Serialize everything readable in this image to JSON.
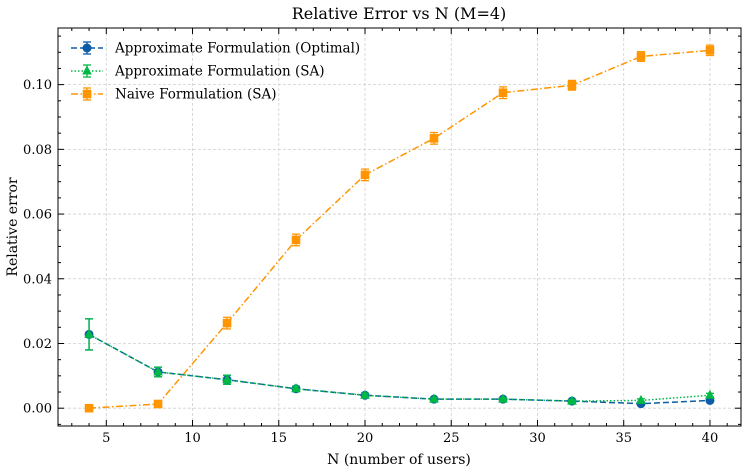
{
  "chart_data": {
    "type": "line",
    "title": "Relative Error vs N (M=4)",
    "xlabel": "N (number of users)",
    "ylabel": "Relative error",
    "xlim": [
      2.2,
      41.8
    ],
    "ylim": [
      -0.0055,
      0.1175
    ],
    "xticks": [
      5,
      10,
      15,
      20,
      25,
      30,
      35,
      40
    ],
    "xtick_labels": [
      "5",
      "10",
      "15",
      "20",
      "25",
      "30",
      "35",
      "40"
    ],
    "yticks": [
      0.0,
      0.02,
      0.04,
      0.06,
      0.08,
      0.1
    ],
    "ytick_labels": [
      "0.00",
      "0.02",
      "0.04",
      "0.06",
      "0.08",
      "0.10"
    ],
    "grid": true,
    "legend_position": "top-left",
    "x": [
      4,
      8,
      12,
      16,
      20,
      24,
      28,
      32,
      36,
      40
    ],
    "series": [
      {
        "name": "Approximate Formulation (Optimal)",
        "color": "#0c5da5",
        "marker": "circle",
        "linestyle": "dashed",
        "values": [
          0.0228,
          0.0112,
          0.0088,
          0.006,
          0.004,
          0.0028,
          0.0028,
          0.0022,
          0.0014,
          0.0024
        ],
        "errors": [
          0.0048,
          0.0015,
          0.0014,
          0.0008,
          0.0006,
          0.0004,
          0.0004,
          0.0004,
          0.0004,
          0.0005
        ]
      },
      {
        "name": "Approximate Formulation (SA)",
        "color": "#00b945",
        "marker": "triangle",
        "linestyle": "dotted",
        "values": [
          0.0228,
          0.0112,
          0.0088,
          0.006,
          0.004,
          0.0028,
          0.0028,
          0.0022,
          0.0024,
          0.004
        ],
        "errors": [
          0.0048,
          0.0015,
          0.0014,
          0.0008,
          0.0006,
          0.0004,
          0.0004,
          0.0004,
          0.0005,
          0.0006
        ]
      },
      {
        "name": "Naive Formulation (SA)",
        "color": "#ff9500",
        "marker": "square",
        "linestyle": "dashdot",
        "values": [
          0.0,
          0.0013,
          0.0263,
          0.052,
          0.0721,
          0.0834,
          0.0975,
          0.0998,
          0.1087,
          0.1106
        ],
        "errors": [
          0.0003,
          0.0005,
          0.0018,
          0.0018,
          0.0018,
          0.0018,
          0.0018,
          0.0015,
          0.0015,
          0.0016
        ]
      }
    ]
  }
}
